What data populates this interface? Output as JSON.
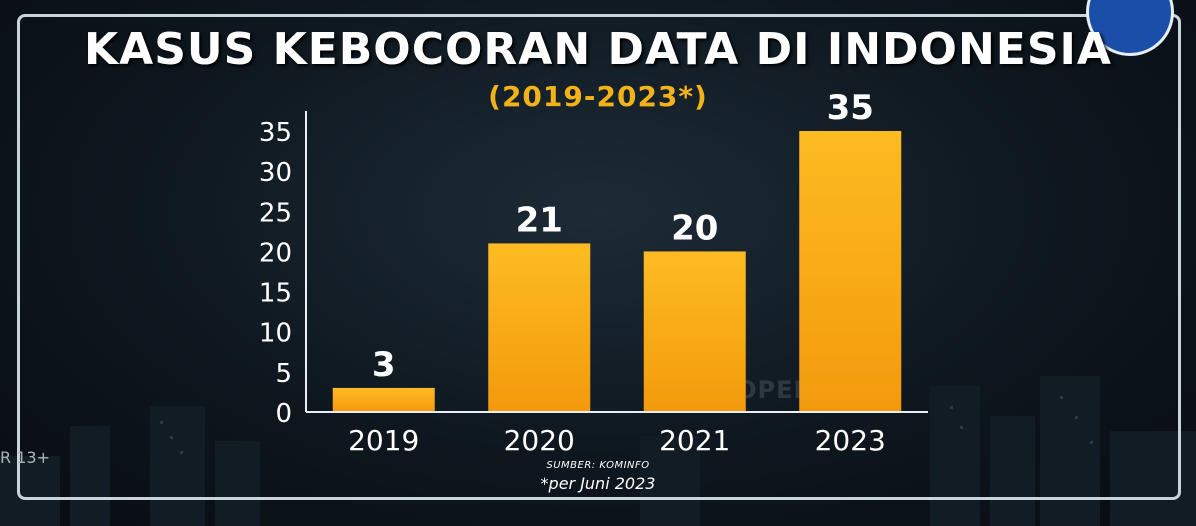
{
  "header": {
    "title": "KASUS KEBOCORAN DATA DI INDONESIA",
    "subtitle": "(2019-2023*)"
  },
  "footer": {
    "source": "SUMBER: KOMINFO",
    "note": "*per Juni 2023"
  },
  "watermark": "PROPERTY OF",
  "rating": "R 13+",
  "colors": {
    "bar": "#f6a20f",
    "bar_light": "#fdbb22",
    "axis": "#e9eef2",
    "subtitle": "#f2b318",
    "text": "#ffffff"
  },
  "chart_data": {
    "type": "bar",
    "title": "KASUS KEBOCORAN DATA DI INDONESIA",
    "subtitle": "(2019-2023*)",
    "categories": [
      "2019",
      "2020",
      "2021",
      "2023"
    ],
    "values": [
      3,
      21,
      20,
      35
    ],
    "yticks": [
      0,
      5,
      10,
      15,
      20,
      25,
      30,
      35
    ],
    "ylim": [
      0,
      35
    ],
    "xlabel": "",
    "ylabel": "",
    "grid": false,
    "legend": "none"
  }
}
